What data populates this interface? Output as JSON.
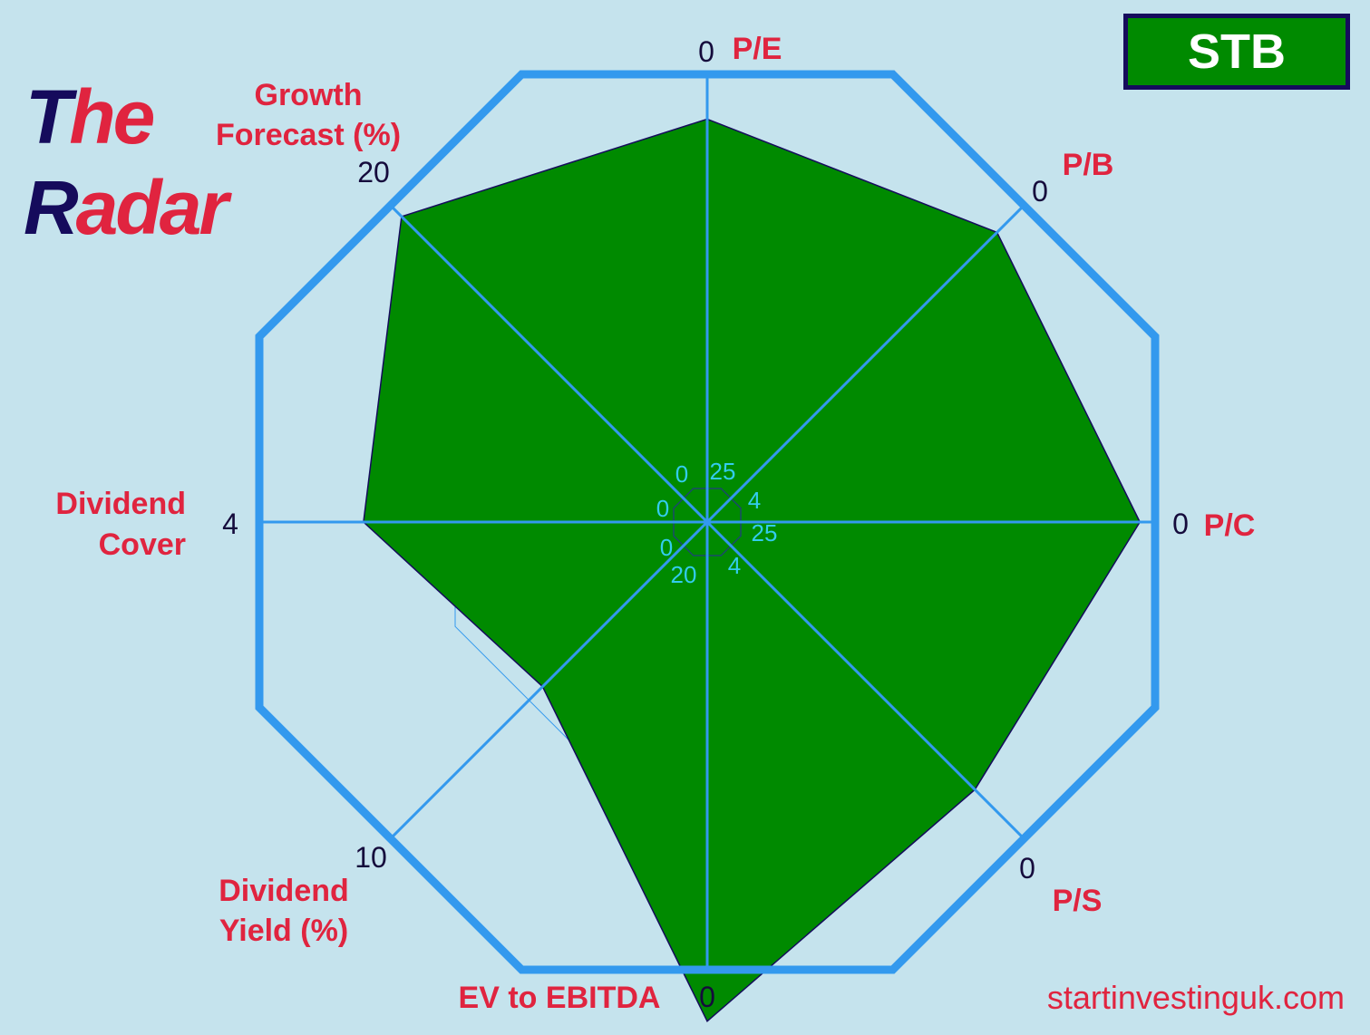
{
  "logo": {
    "word1_a": "T",
    "word1_b": "he",
    "word2_a": "R",
    "word2_b": "adar"
  },
  "ticker": "STB",
  "website": "startinvestinguk.com",
  "colors": {
    "background": "#c5e3ed",
    "fill": "#008a00",
    "frame": "#3399ee",
    "label": "#e0243f",
    "navy": "#150b5c",
    "inner_tick": "#33ccee"
  },
  "chart_data": {
    "type": "radar",
    "title": "",
    "grid": true,
    "axes": [
      {
        "name_lines": [
          "P/E"
        ],
        "center_label": "25",
        "outer_label": "0",
        "center_value": 25,
        "outer_value": 0,
        "value": 2.5
      },
      {
        "name_lines": [
          "P/B"
        ],
        "center_label": "4",
        "outer_label": "0",
        "center_value": 4,
        "outer_value": 0,
        "value": 0.34
      },
      {
        "name_lines": [
          "P/C"
        ],
        "center_label": "25",
        "outer_label": "0",
        "center_value": 25,
        "outer_value": 0,
        "value": 0.85
      },
      {
        "name_lines": [
          "P/S"
        ],
        "center_label": "4",
        "outer_label": "0",
        "center_value": 4,
        "outer_value": 0,
        "value": 0.62
      },
      {
        "name_lines": [
          "EV to EBITDA"
        ],
        "center_label": "20",
        "outer_label": "0",
        "center_value": 20,
        "outer_value": 0,
        "value": -2.3
      },
      {
        "name_lines": [
          "Dividend",
          "Yield (%)"
        ],
        "center_label": "0",
        "outer_label": "10",
        "center_value": 0,
        "outer_value": 10,
        "value": 5.2
      },
      {
        "name_lines": [
          "Dividend",
          "Cover"
        ],
        "center_label": "0",
        "outer_label": "4",
        "center_value": 0,
        "outer_value": 4,
        "value": 3.07
      },
      {
        "name_lines": [
          "Growth",
          "Forecast (%)"
        ],
        "center_label": "0",
        "outer_label": "20",
        "center_value": 0,
        "outer_value": 20,
        "value": 19.3
      }
    ]
  }
}
